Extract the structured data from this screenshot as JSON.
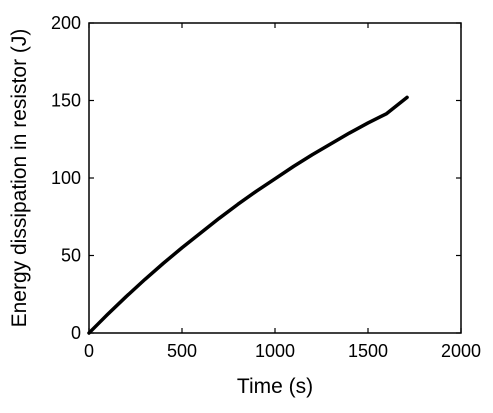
{
  "chart_data": {
    "type": "line",
    "title": "",
    "xlabel": "Time (s)",
    "ylabel": "Energy dissipation in resistor (J)",
    "xlim": [
      0,
      2000
    ],
    "ylim": [
      0,
      200
    ],
    "xticks": [
      0,
      500,
      1000,
      1500,
      2000
    ],
    "yticks": [
      0,
      50,
      100,
      150,
      200
    ],
    "grid": false,
    "legend": "none",
    "line_color": "#000000",
    "series": [
      {
        "x": [
          0,
          50,
          100,
          200,
          300,
          400,
          500,
          600,
          700,
          800,
          900,
          1000,
          1100,
          1200,
          1300,
          1400,
          1500,
          1600,
          1710
        ],
        "y": [
          0,
          6,
          12,
          23.5,
          34.5,
          45,
          55,
          64.5,
          74,
          83,
          91.5,
          99.5,
          107.5,
          115,
          122,
          129,
          135.5,
          141.5,
          152
        ]
      }
    ]
  }
}
